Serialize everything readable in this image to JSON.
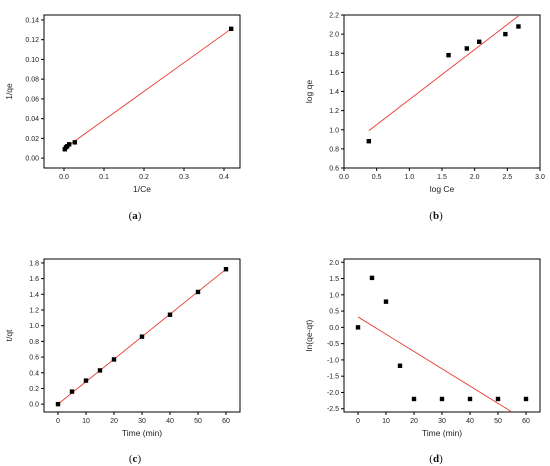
{
  "chart_data": [
    {
      "type": "scatter",
      "caption": {
        "open": "(",
        "letter": "a",
        "close": ")"
      },
      "xlabel": "1/Ce",
      "ylabel": "1/qe",
      "xlim": [
        -0.05,
        0.44
      ],
      "ylim": [
        -0.01,
        0.145
      ],
      "xticks": [
        0.0,
        0.1,
        0.2,
        0.3,
        0.4
      ],
      "xtick_labels": [
        "0.0",
        "0.1",
        "0.2",
        "0.3",
        "0.4"
      ],
      "yticks": [
        0.0,
        0.02,
        0.04,
        0.06,
        0.08,
        0.1,
        0.12,
        0.14
      ],
      "ytick_labels": [
        "0.00",
        "0.02",
        "0.04",
        "0.06",
        "0.08",
        "0.10",
        "0.12",
        "0.14"
      ],
      "points": {
        "x": [
          0.002,
          0.005,
          0.008,
          0.013,
          0.027,
          0.418
        ],
        "y": [
          0.009,
          0.011,
          0.012,
          0.014,
          0.016,
          0.131
        ]
      },
      "fit_line": {
        "x": [
          0.0,
          0.418
        ],
        "y": [
          0.0095,
          0.131
        ]
      },
      "colors": {
        "points": "#000000",
        "fit": "#e8382c"
      }
    },
    {
      "type": "scatter",
      "caption": {
        "open": "(",
        "letter": "b",
        "close": ")"
      },
      "xlabel": "log Ce",
      "ylabel": "log qe",
      "xlim": [
        0.0,
        3.0
      ],
      "ylim": [
        0.6,
        2.2
      ],
      "xticks": [
        0.0,
        0.5,
        1.0,
        1.5,
        2.0,
        2.5,
        3.0
      ],
      "xtick_labels": [
        "0.0",
        "0.5",
        "1.0",
        "1.5",
        "2.0",
        "2.5",
        "3.0"
      ],
      "yticks": [
        0.6,
        0.8,
        1.0,
        1.2,
        1.4,
        1.6,
        1.8,
        2.0,
        2.2
      ],
      "ytick_labels": [
        "0.6",
        "0.8",
        "1.0",
        "1.2",
        "1.4",
        "1.6",
        "1.8",
        "2.0",
        "2.2"
      ],
      "points": {
        "x": [
          0.38,
          1.6,
          1.88,
          2.07,
          2.47,
          2.67
        ],
        "y": [
          0.88,
          1.78,
          1.85,
          1.92,
          2.0,
          2.08
        ]
      },
      "fit_line": {
        "x": [
          0.38,
          2.67
        ],
        "y": [
          0.99,
          2.19
        ]
      },
      "colors": {
        "points": "#000000",
        "fit": "#e8382c"
      }
    },
    {
      "type": "scatter",
      "caption": {
        "open": "(",
        "letter": "c",
        "close": ")"
      },
      "xlabel": "Time (min)",
      "ylabel": "t/qt",
      "xlim": [
        -5,
        65
      ],
      "ylim": [
        -0.1,
        1.85
      ],
      "xticks": [
        0,
        10,
        20,
        30,
        40,
        50,
        60
      ],
      "xtick_labels": [
        "0",
        "10",
        "20",
        "30",
        "40",
        "50",
        "60"
      ],
      "yticks": [
        0.0,
        0.2,
        0.4,
        0.6,
        0.8,
        1.0,
        1.2,
        1.4,
        1.6,
        1.8
      ],
      "ytick_labels": [
        "0.0",
        "0.2",
        "0.4",
        "0.6",
        "0.8",
        "1.0",
        "1.2",
        "1.4",
        "1.6",
        "1.8"
      ],
      "points": {
        "x": [
          0,
          5,
          10,
          15,
          20,
          30,
          40,
          50,
          60
        ],
        "y": [
          0.0,
          0.16,
          0.3,
          0.43,
          0.57,
          0.86,
          1.14,
          1.43,
          1.72
        ]
      },
      "fit_line": {
        "x": [
          0,
          60
        ],
        "y": [
          0.0,
          1.72
        ]
      },
      "colors": {
        "points": "#000000",
        "fit": "#e8382c"
      }
    },
    {
      "type": "scatter",
      "caption": {
        "open": "(",
        "letter": "d",
        "close": ")"
      },
      "xlabel": "Time (min)",
      "ylabel": "ln(qe-qt)",
      "xlim": [
        -5,
        65
      ],
      "ylim": [
        -2.6,
        2.1
      ],
      "xticks": [
        0,
        10,
        20,
        30,
        40,
        50,
        60
      ],
      "xtick_labels": [
        "0",
        "10",
        "20",
        "30",
        "40",
        "50",
        "60"
      ],
      "yticks": [
        -2.5,
        -2.0,
        -1.5,
        -1.0,
        -0.5,
        0.0,
        0.5,
        1.0,
        1.5,
        2.0
      ],
      "ytick_labels": [
        "-2.5",
        "-2.0",
        "-1.5",
        "-1.0",
        "-0.5",
        "0.0",
        "0.5",
        "1.0",
        "1.5",
        "2.0"
      ],
      "points": {
        "x": [
          0,
          5,
          10,
          15,
          20,
          30,
          40,
          50,
          60
        ],
        "y": [
          0.0,
          1.52,
          0.79,
          -1.18,
          -2.2,
          -2.2,
          -2.2,
          -2.2,
          -2.2
        ]
      },
      "fit_line": {
        "x": [
          0,
          55
        ],
        "y": [
          0.32,
          -2.6
        ]
      },
      "colors": {
        "points": "#000000",
        "fit": "#e8382c"
      }
    }
  ]
}
